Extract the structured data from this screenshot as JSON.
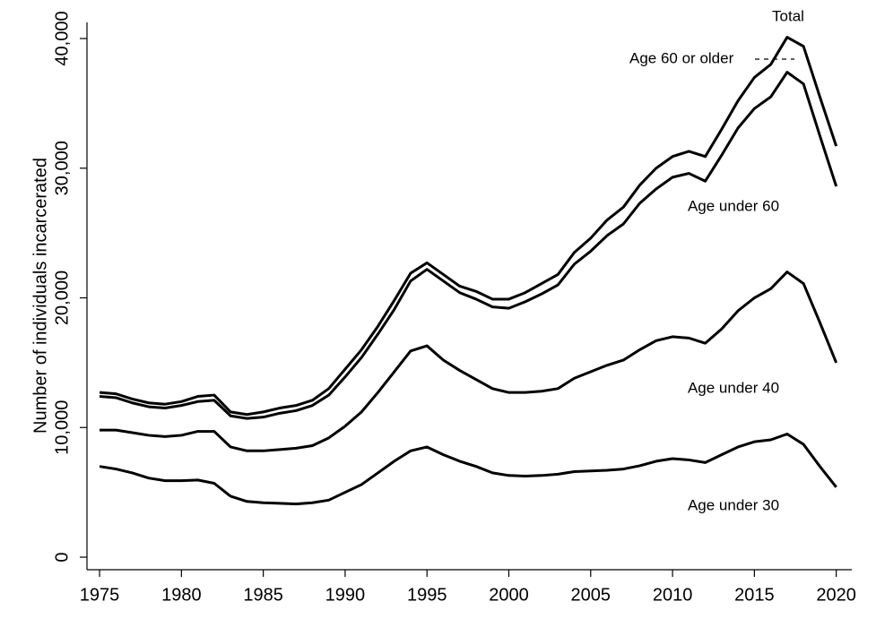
{
  "chart_data": {
    "type": "line",
    "y_label": "Number of individuals incarcerated",
    "x": [
      1975,
      1976,
      1977,
      1978,
      1979,
      1980,
      1981,
      1982,
      1983,
      1984,
      1985,
      1986,
      1987,
      1988,
      1989,
      1990,
      1991,
      1992,
      1993,
      1994,
      1995,
      1996,
      1997,
      1998,
      1999,
      2000,
      2001,
      2002,
      2003,
      2004,
      2005,
      2006,
      2007,
      2008,
      2009,
      2010,
      2011,
      2012,
      2013,
      2014,
      2015,
      2016,
      2017,
      2018,
      2019,
      2020
    ],
    "series": [
      {
        "name": "Total",
        "color": "#000000",
        "values": [
          12700,
          12600,
          12200,
          11900,
          11800,
          12000,
          12400,
          12500,
          11200,
          11000,
          11200,
          11500,
          11700,
          12100,
          13000,
          14500,
          16000,
          17800,
          19800,
          21900,
          22700,
          21800,
          20900,
          20500,
          19900,
          19900,
          20400,
          21100,
          21800,
          23500,
          24600,
          26000,
          27000,
          28700,
          30000,
          30900,
          31300,
          30900,
          33000,
          35200,
          37000,
          38000,
          40100,
          39400,
          35500,
          31700
        ]
      },
      {
        "name": "Age under 60",
        "color": "#000000",
        "values": [
          12400,
          12300,
          11900,
          11600,
          11500,
          11700,
          12000,
          12100,
          10900,
          10700,
          10800,
          11100,
          11300,
          11700,
          12500,
          13900,
          15400,
          17200,
          19100,
          21300,
          22200,
          21300,
          20400,
          19900,
          19300,
          19200,
          19700,
          20300,
          21000,
          22600,
          23600,
          24800,
          25700,
          27300,
          28400,
          29300,
          29600,
          29000,
          31000,
          33100,
          34600,
          35500,
          37400,
          36500,
          32500,
          28600
        ]
      },
      {
        "name": "Age under 40",
        "color": "#000000",
        "values": [
          9800,
          9800,
          9600,
          9400,
          9300,
          9400,
          9700,
          9700,
          8500,
          8200,
          8200,
          8300,
          8400,
          8600,
          9200,
          10100,
          11200,
          12700,
          14300,
          15900,
          16300,
          15200,
          14400,
          13700,
          13000,
          12700,
          12700,
          12800,
          13000,
          13800,
          14300,
          14800,
          15200,
          16000,
          16700,
          17000,
          16900,
          16500,
          17600,
          19000,
          20000,
          20700,
          22000,
          21100,
          18100,
          15000
        ]
      },
      {
        "name": "Age under 30",
        "color": "#000000",
        "values": [
          7000,
          6800,
          6500,
          6100,
          5900,
          5900,
          5950,
          5700,
          4700,
          4300,
          4200,
          4150,
          4100,
          4200,
          4400,
          5000,
          5600,
          6500,
          7400,
          8200,
          8500,
          7900,
          7400,
          7000,
          6500,
          6300,
          6250,
          6300,
          6400,
          6600,
          6650,
          6700,
          6800,
          7050,
          7400,
          7600,
          7500,
          7300,
          7900,
          8500,
          8900,
          9050,
          9500,
          8700,
          7000,
          5400
        ]
      }
    ],
    "annotation": "Age 60 or older",
    "xlim": [
      1974.23,
      2020.95
    ],
    "xticks": [
      1975,
      1980,
      1985,
      1990,
      1995,
      2000,
      2005,
      2010,
      2015,
      2020
    ],
    "ylim": [
      -967,
      41244
    ],
    "yticks": [
      0,
      {
        "value": 10000,
        "label": "10,000"
      },
      {
        "value": 20000,
        "label": "20,000"
      },
      {
        "value": 30000,
        "label": "30,000"
      },
      {
        "value": 40000,
        "label": "40,000"
      }
    ],
    "grid": false
  }
}
